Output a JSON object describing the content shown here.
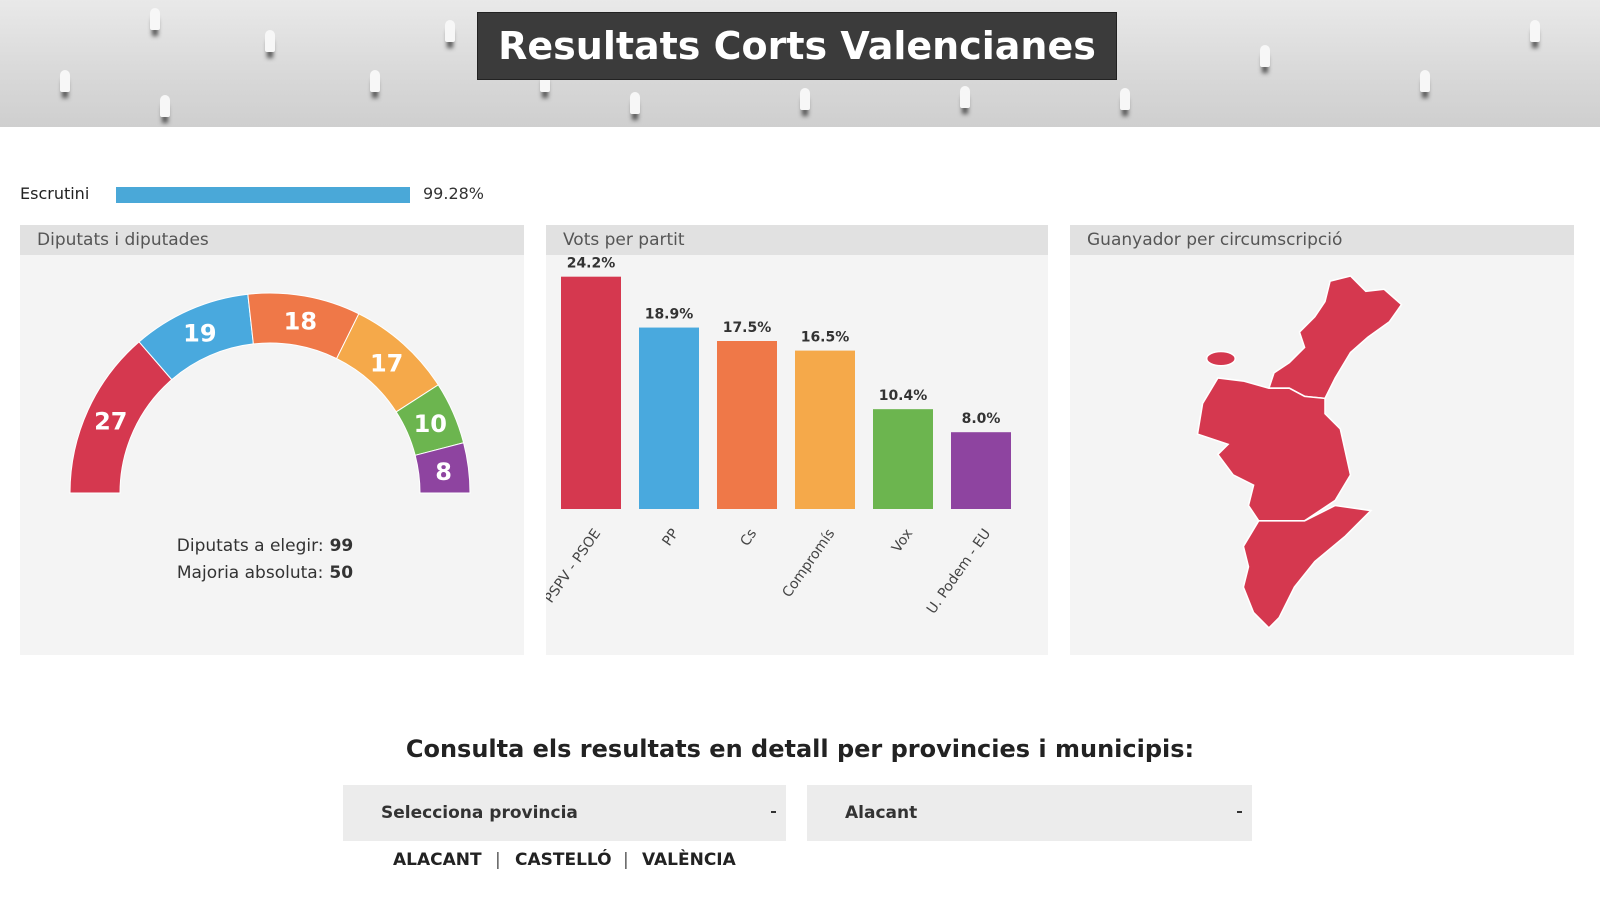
{
  "header": {
    "title": "Resultats Corts Valencianes"
  },
  "scrutiny": {
    "label": "Escrutini",
    "value": 99.28,
    "value_label": "99.28%",
    "xlim": [
      0,
      100
    ]
  },
  "chart_data": [
    {
      "type": "hemicycle",
      "title": "Diputats i diputades",
      "values": [
        27,
        19,
        18,
        17,
        10,
        8
      ],
      "colors": [
        "#d5384f",
        "#49a9de",
        "#ef7848",
        "#f5a94a",
        "#6cb54f",
        "#8e44a0"
      ],
      "summary": [
        {
          "label": "Diputats a elegir:",
          "value": 99
        },
        {
          "label": "Majoria absoluta:",
          "value": 50
        }
      ]
    },
    {
      "type": "bar",
      "title": "Vots per partit",
      "categories": [
        "PSPV - PSOE",
        "PP",
        "Cs",
        "Compromís",
        "Vox",
        "U. Podem - EU"
      ],
      "values": [
        24.2,
        18.9,
        17.5,
        16.5,
        10.4,
        8.0
      ],
      "value_labels": [
        "24.2%",
        "18.9%",
        "17.5%",
        "16.5%",
        "10.4%",
        "8.0%"
      ],
      "colors": [
        "#d5384f",
        "#49a9de",
        "#ef7848",
        "#f5a94a",
        "#6cb54f",
        "#8e44a0"
      ],
      "ylim": [
        0,
        25
      ]
    }
  ],
  "map": {
    "title": "Guanyador per circumscripció"
  },
  "consult": {
    "title": "Consulta els resultats en detall per provincies i municipis:",
    "province_select": "Selecciona provincia",
    "municipality_select": "Alacant",
    "links": [
      "ALACANT",
      "CASTELLÓ",
      "VALÈNCIA"
    ]
  }
}
